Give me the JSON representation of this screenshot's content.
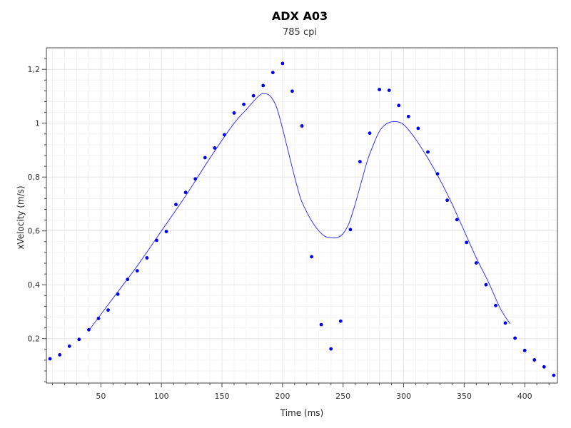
{
  "chart_data": {
    "type": "scatter",
    "title": "ADX A03",
    "subtitle": "785 cpi",
    "xlabel": "Time (ms)",
    "ylabel": "xVelocity (m/s)",
    "xlim": [
      5,
      427
    ],
    "ylim": [
      0.035,
      1.28
    ],
    "x_ticks": [
      50,
      100,
      150,
      200,
      250,
      300,
      350,
      400
    ],
    "x_tick_labels": [
      "50",
      "100",
      "150",
      "200",
      "250",
      "300",
      "350",
      "400"
    ],
    "y_ticks": [
      0.2,
      0.4,
      0.6,
      0.8,
      1.0,
      1.2
    ],
    "y_tick_labels": [
      "0,2",
      "0,4",
      "0,6",
      "0,8",
      "1",
      "1,2"
    ],
    "grid": true,
    "colors": {
      "points": "#0000ee",
      "line": "#3333ff",
      "grid": "#e6e6e6",
      "axis": "#444444"
    },
    "series": [
      {
        "type": "scatter",
        "x": [
          8,
          16,
          24,
          32,
          40,
          48,
          56,
          64,
          72,
          80,
          88,
          96,
          104,
          112,
          120,
          128,
          136,
          144,
          152,
          160,
          168,
          176,
          184,
          192,
          200,
          208,
          216,
          224,
          232,
          240,
          248,
          256,
          264,
          272,
          280,
          288,
          296,
          304,
          312,
          320,
          328,
          336,
          344,
          352,
          360,
          368,
          376,
          384,
          392,
          400,
          408,
          416,
          424
        ],
        "y": [
          0.125,
          0.14,
          0.172,
          0.197,
          0.233,
          0.275,
          0.306,
          0.365,
          0.42,
          0.452,
          0.5,
          0.565,
          0.598,
          0.698,
          0.743,
          0.793,
          0.872,
          0.908,
          0.957,
          1.038,
          1.07,
          1.102,
          1.14,
          1.188,
          1.222,
          1.119,
          0.99,
          0.504,
          0.252,
          0.162,
          0.265,
          0.605,
          0.857,
          0.963,
          1.125,
          1.122,
          1.066,
          1.025,
          0.981,
          0.893,
          0.812,
          0.714,
          0.642,
          0.557,
          0.481,
          0.4,
          0.323,
          0.258,
          0.202,
          0.156,
          0.121,
          0.095,
          0.064
        ]
      },
      {
        "type": "line",
        "x": [
          40,
          60,
          80,
          100,
          120,
          140,
          160,
          170,
          180,
          185,
          190,
          195,
          200,
          205,
          210,
          215,
          220,
          225,
          230,
          235,
          240,
          245,
          250,
          255,
          260,
          265,
          270,
          275,
          280,
          285,
          290,
          295,
          300,
          305,
          310,
          320,
          330,
          340,
          350,
          360,
          370,
          380,
          388
        ],
        "y": [
          0.23,
          0.35,
          0.47,
          0.6,
          0.73,
          0.87,
          1.0,
          1.05,
          1.1,
          1.11,
          1.1,
          1.06,
          0.98,
          0.89,
          0.8,
          0.72,
          0.67,
          0.63,
          0.6,
          0.58,
          0.575,
          0.575,
          0.59,
          0.63,
          0.7,
          0.78,
          0.86,
          0.92,
          0.97,
          0.995,
          1.005,
          1.005,
          0.995,
          0.97,
          0.94,
          0.87,
          0.79,
          0.7,
          0.6,
          0.5,
          0.41,
          0.31,
          0.255
        ]
      }
    ]
  }
}
